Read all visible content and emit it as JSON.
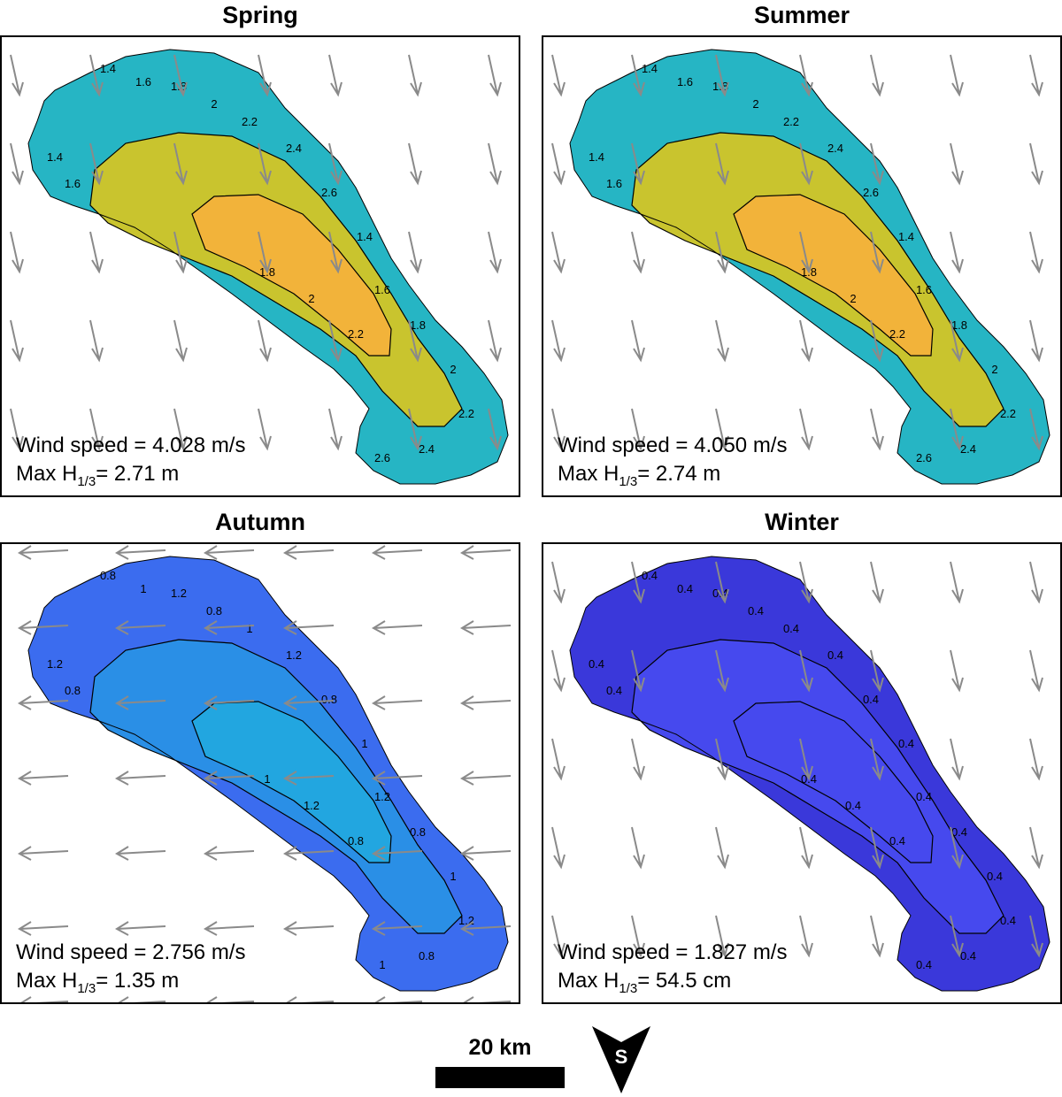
{
  "panels": [
    {
      "title": "Spring",
      "wind_speed_text": "Wind speed = 4.028 m/s",
      "max_prefix": "Max H",
      "max_sub": "1/3",
      "max_value": "= 2.71 m",
      "contour_labels": [
        "1.4",
        "1.6",
        "1.8",
        "2",
        "2.2",
        "2.4",
        "2.6"
      ],
      "color_fill": "#c9c42e",
      "color_core": "#f2b33a",
      "color_edge": "#26b5c4"
    },
    {
      "title": "Summer",
      "wind_speed_text": "Wind speed = 4.050 m/s",
      "max_prefix": "Max H",
      "max_sub": "1/3",
      "max_value": "= 2.74 m",
      "contour_labels": [
        "1.4",
        "1.6",
        "1.8",
        "2",
        "2.2",
        "2.4",
        "2.6"
      ],
      "color_fill": "#c9c42e",
      "color_core": "#f2b33a",
      "color_edge": "#26b5c4"
    },
    {
      "title": "Autumn",
      "wind_speed_text": "Wind speed = 2.756 m/s",
      "max_prefix": "Max H",
      "max_sub": "1/3",
      "max_value": "= 1.35 m",
      "contour_labels": [
        "0.8",
        "1",
        "1.2"
      ],
      "color_fill": "#2a8fe6",
      "color_core": "#22a6e0",
      "color_edge": "#3b6cef"
    },
    {
      "title": "Winter",
      "wind_speed_text": "Wind speed = 1.827 m/s",
      "max_prefix": "Max H",
      "max_sub": "1/3",
      "max_value": "= 54.5 cm",
      "contour_labels": [
        "0.4"
      ],
      "color_fill": "#4649ee",
      "color_core": "#4649ee",
      "color_edge": "#3a38da"
    }
  ],
  "scale_label": "20 km",
  "compass_letter": "S",
  "colors": {
    "arrow": "#8a8a8a",
    "frame": "#000000"
  }
}
